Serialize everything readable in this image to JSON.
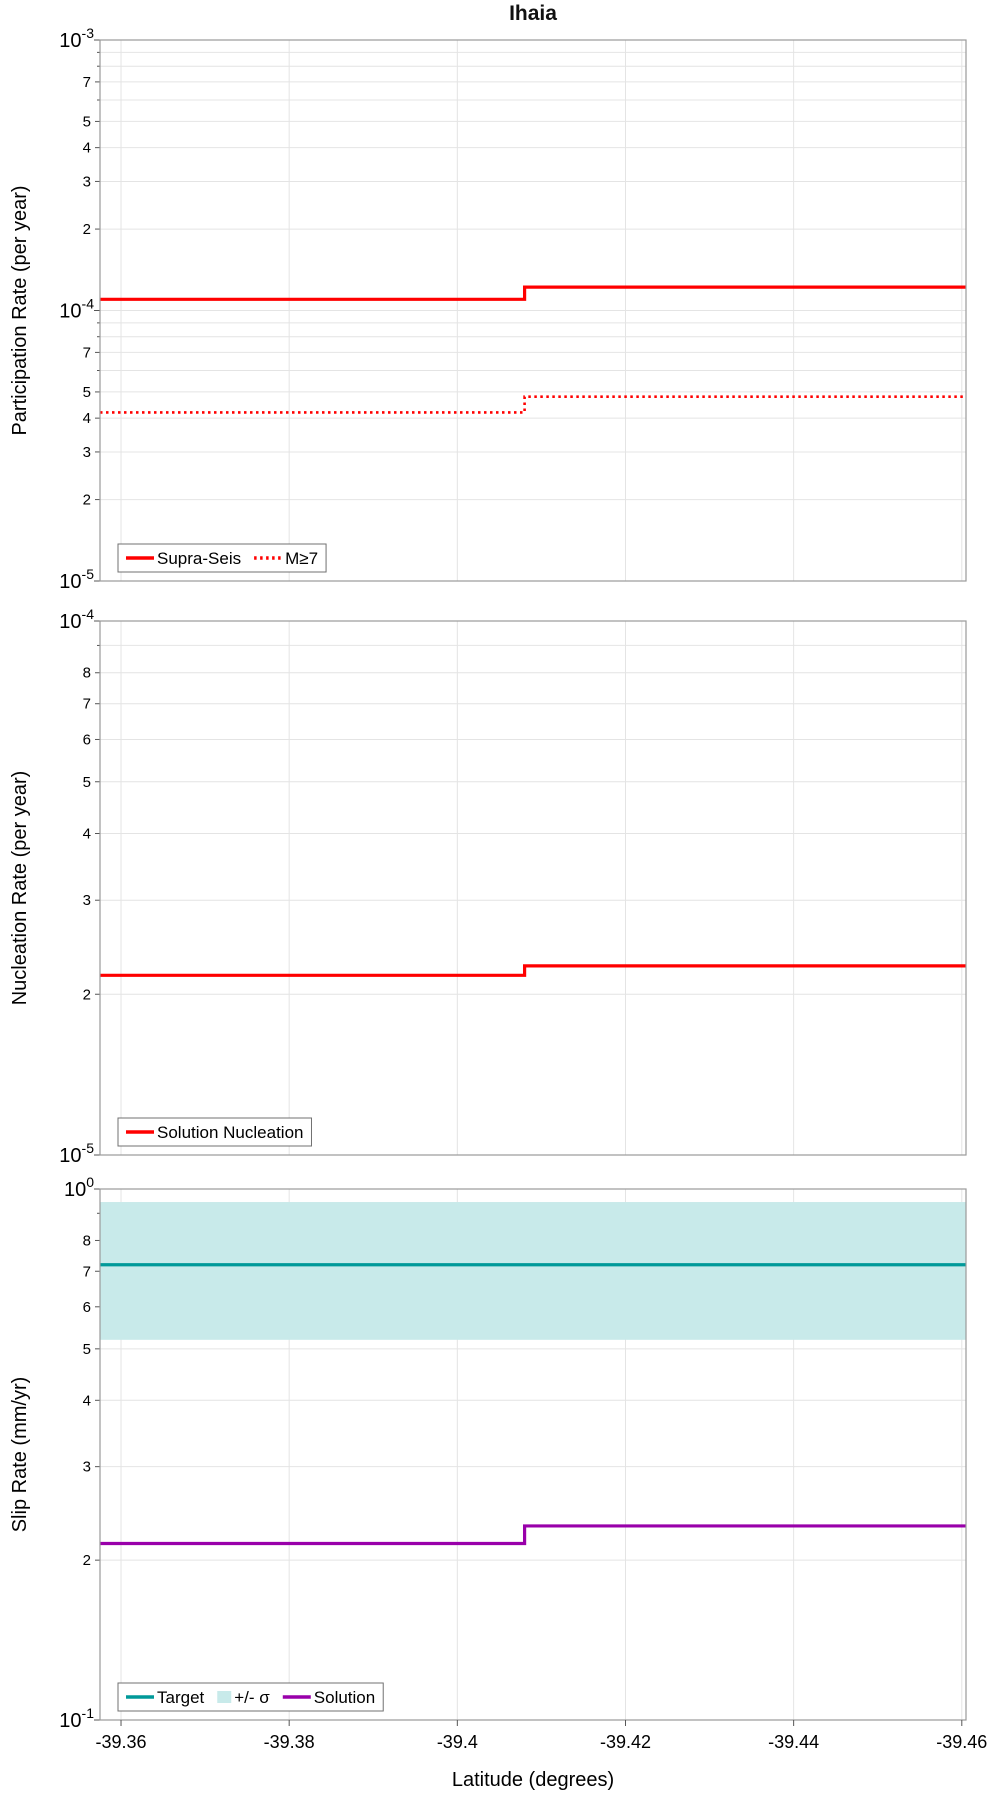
{
  "title": "Ihaia",
  "chart_data": {
    "type": "line",
    "title": "Ihaia",
    "xlabel": "Latitude (degrees)",
    "xlim": [
      -39.3575,
      -39.4605
    ],
    "xtick_values": [
      -39.36,
      -39.38,
      -39.4,
      -39.42,
      -39.44,
      -39.46
    ],
    "xtick_labels": [
      "-39.36",
      "-39.38",
      "-39.4",
      "-39.42",
      "-39.44",
      "-39.46"
    ],
    "grid": true,
    "colors": {
      "red": "#ff0000",
      "teal": "#009999",
      "band": "#c8eaea",
      "purple": "#9900aa",
      "gridline": "#e4e4e4"
    },
    "panels": [
      {
        "ylabel": "Participation Rate (per year)",
        "yscale": "log",
        "ylim": [
          1e-05,
          0.001
        ],
        "y_minor_labeled": [
          2,
          3,
          4,
          5,
          7
        ],
        "legend_position": "bottom-left",
        "series": [
          {
            "name": "Supra-Seis",
            "color": "#ff0000",
            "dash": "solid",
            "width": 3.2,
            "points": [
              [
                -39.3575,
                0.00011
              ],
              [
                -39.408,
                0.00011
              ],
              [
                -39.408,
                0.000122
              ],
              [
                -39.4605,
                0.000122
              ]
            ]
          },
          {
            "name": "M≥7",
            "color": "#ff0000",
            "dash": "dotted",
            "width": 2.6,
            "points": [
              [
                -39.3575,
                4.2e-05
              ],
              [
                -39.408,
                4.2e-05
              ],
              [
                -39.408,
                4.8e-05
              ],
              [
                -39.4605,
                4.8e-05
              ]
            ]
          }
        ],
        "legend": [
          {
            "label": "Supra-Seis",
            "type": "line",
            "dash": "solid",
            "color": "#ff0000"
          },
          {
            "label": "M≥7",
            "type": "line",
            "dash": "dotted",
            "color": "#ff0000"
          }
        ]
      },
      {
        "ylabel": "Nucleation Rate (per year)",
        "yscale": "log",
        "ylim": [
          1e-05,
          0.0001
        ],
        "y_minor_labeled": [
          2,
          3,
          4,
          5,
          6,
          7,
          8
        ],
        "legend_position": "bottom-left",
        "series": [
          {
            "name": "Solution Nucleation",
            "color": "#ff0000",
            "dash": "solid",
            "width": 3.2,
            "points": [
              [
                -39.3575,
                2.17e-05
              ],
              [
                -39.408,
                2.17e-05
              ],
              [
                -39.408,
                2.26e-05
              ],
              [
                -39.4605,
                2.26e-05
              ]
            ]
          }
        ],
        "legend": [
          {
            "label": "Solution Nucleation",
            "type": "line",
            "dash": "solid",
            "color": "#ff0000"
          }
        ]
      },
      {
        "ylabel": "Slip Rate (mm/yr)",
        "yscale": "log",
        "ylim": [
          0.1,
          1.0
        ],
        "y_minor_labeled": [
          2,
          3,
          4,
          5,
          6,
          7,
          8
        ],
        "legend_position": "bottom-left",
        "series": [
          {
            "name": "+/- σ",
            "type": "band",
            "color": "#c8eaea",
            "x": [
              -39.3575,
              -39.4605
            ],
            "y_lo": 0.52,
            "y_hi": 0.945
          },
          {
            "name": "Target",
            "color": "#009999",
            "dash": "solid",
            "width": 3.2,
            "points": [
              [
                -39.3575,
                0.72
              ],
              [
                -39.4605,
                0.72
              ]
            ]
          },
          {
            "name": "Solution",
            "color": "#9900aa",
            "dash": "solid",
            "width": 3.2,
            "points": [
              [
                -39.3575,
                0.215
              ],
              [
                -39.408,
                0.215
              ],
              [
                -39.408,
                0.232
              ],
              [
                -39.4605,
                0.232
              ]
            ]
          }
        ],
        "legend": [
          {
            "label": "Target",
            "type": "line",
            "dash": "solid",
            "color": "#009999"
          },
          {
            "label": "+/- σ",
            "type": "patch",
            "color": "#c8eaea"
          },
          {
            "label": "Solution",
            "type": "line",
            "dash": "solid",
            "color": "#9900aa"
          }
        ]
      }
    ]
  }
}
